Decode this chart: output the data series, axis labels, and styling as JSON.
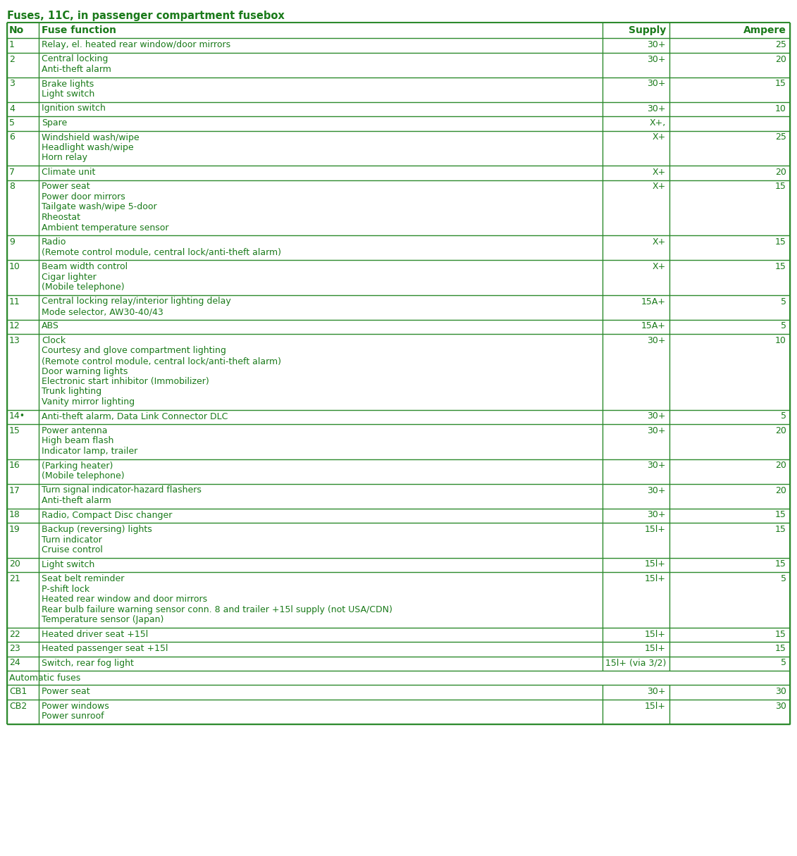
{
  "title": "Fuses, 11C, in passenger compartment fusebox",
  "header": [
    "No",
    "Fuse function",
    "Supply",
    "Ampere"
  ],
  "rows": [
    [
      "1",
      "Relay, el. heated rear window/door mirrors",
      "30+",
      "25"
    ],
    [
      "2",
      "Central locking\nAnti-theft alarm",
      "30+",
      "20"
    ],
    [
      "3",
      "Brake lights\nLight switch",
      "30+",
      "15"
    ],
    [
      "4",
      "Ignition switch",
      "30+",
      "10"
    ],
    [
      "5",
      "Spare",
      "X+,",
      ""
    ],
    [
      "6",
      "Windshield wash/wipe\nHeadlight wash/wipe\nHorn relay",
      "X+",
      "25"
    ],
    [
      "7",
      "Climate unit",
      "X+",
      "20"
    ],
    [
      "8",
      "Power seat\nPower door mirrors\nTailgate wash/wipe 5-door\nRheostat\nAmbient temperature sensor",
      "X+",
      "15"
    ],
    [
      "9",
      "Radio\n(Remote control module, central lock/anti-theft alarm)",
      "X+",
      "15"
    ],
    [
      "10",
      "Beam width control\nCigar lighter\n(Mobile telephone)",
      "X+",
      "15"
    ],
    [
      "11",
      "Central locking relay/interior lighting delay\nMode selector, AW30-40/43",
      "15A+",
      "5"
    ],
    [
      "12",
      "ABS",
      "15A+",
      "5"
    ],
    [
      "13",
      "Clock\nCourtesy and glove compartment lighting\n(Remote control module, central lock/anti-theft alarm)\nDoor warning lights\nElectronic start inhibitor (Immobilizer)\nTrunk lighting\nVanity mirror lighting",
      "30+",
      "10"
    ],
    [
      "14•",
      "Anti-theft alarm, Data Link Connector DLC",
      "30+",
      "5"
    ],
    [
      "15",
      "Power antenna\nHigh beam flash\nIndicator lamp, trailer",
      "30+",
      "20"
    ],
    [
      "16",
      "(Parking heater)\n(Mobile telephone)",
      "30+",
      "20"
    ],
    [
      "17",
      "Turn signal indicator-hazard flashers\nAnti-theft alarm",
      "30+",
      "20"
    ],
    [
      "18",
      "Radio, Compact Disc changer",
      "30+",
      "15"
    ],
    [
      "19",
      "Backup (reversing) lights\nTurn indicator\nCruise control",
      "15l+",
      "15"
    ],
    [
      "20",
      "Light switch",
      "15l+",
      "15"
    ],
    [
      "21",
      "Seat belt reminder\nP-shift lock\nHeated rear window and door mirrors\nRear bulb failure warning sensor conn. 8 and trailer +15l supply (not USA/CDN)\nTemperature sensor (Japan)",
      "15l+",
      "5"
    ],
    [
      "22",
      "Heated driver seat +15l",
      "15l+",
      "15"
    ],
    [
      "23",
      "Heated passenger seat +15l",
      "15l+",
      "15"
    ],
    [
      "24",
      "Switch, rear fog light",
      "15l+ (via 3/2)",
      "5"
    ]
  ],
  "auto_fuses_label": "Automatic fuses",
  "cb_rows": [
    [
      "CB1",
      "Power seat",
      "30+",
      "30"
    ],
    [
      "CB2",
      "Power windows\nPower sunroof",
      "15l+",
      "30"
    ]
  ],
  "text_color": "#1a7a1a",
  "border_color": "#2d8a2d",
  "bg_color": "#ffffff",
  "font_size": 9.0,
  "title_font_size": 10.5,
  "header_font_size": 10.0
}
